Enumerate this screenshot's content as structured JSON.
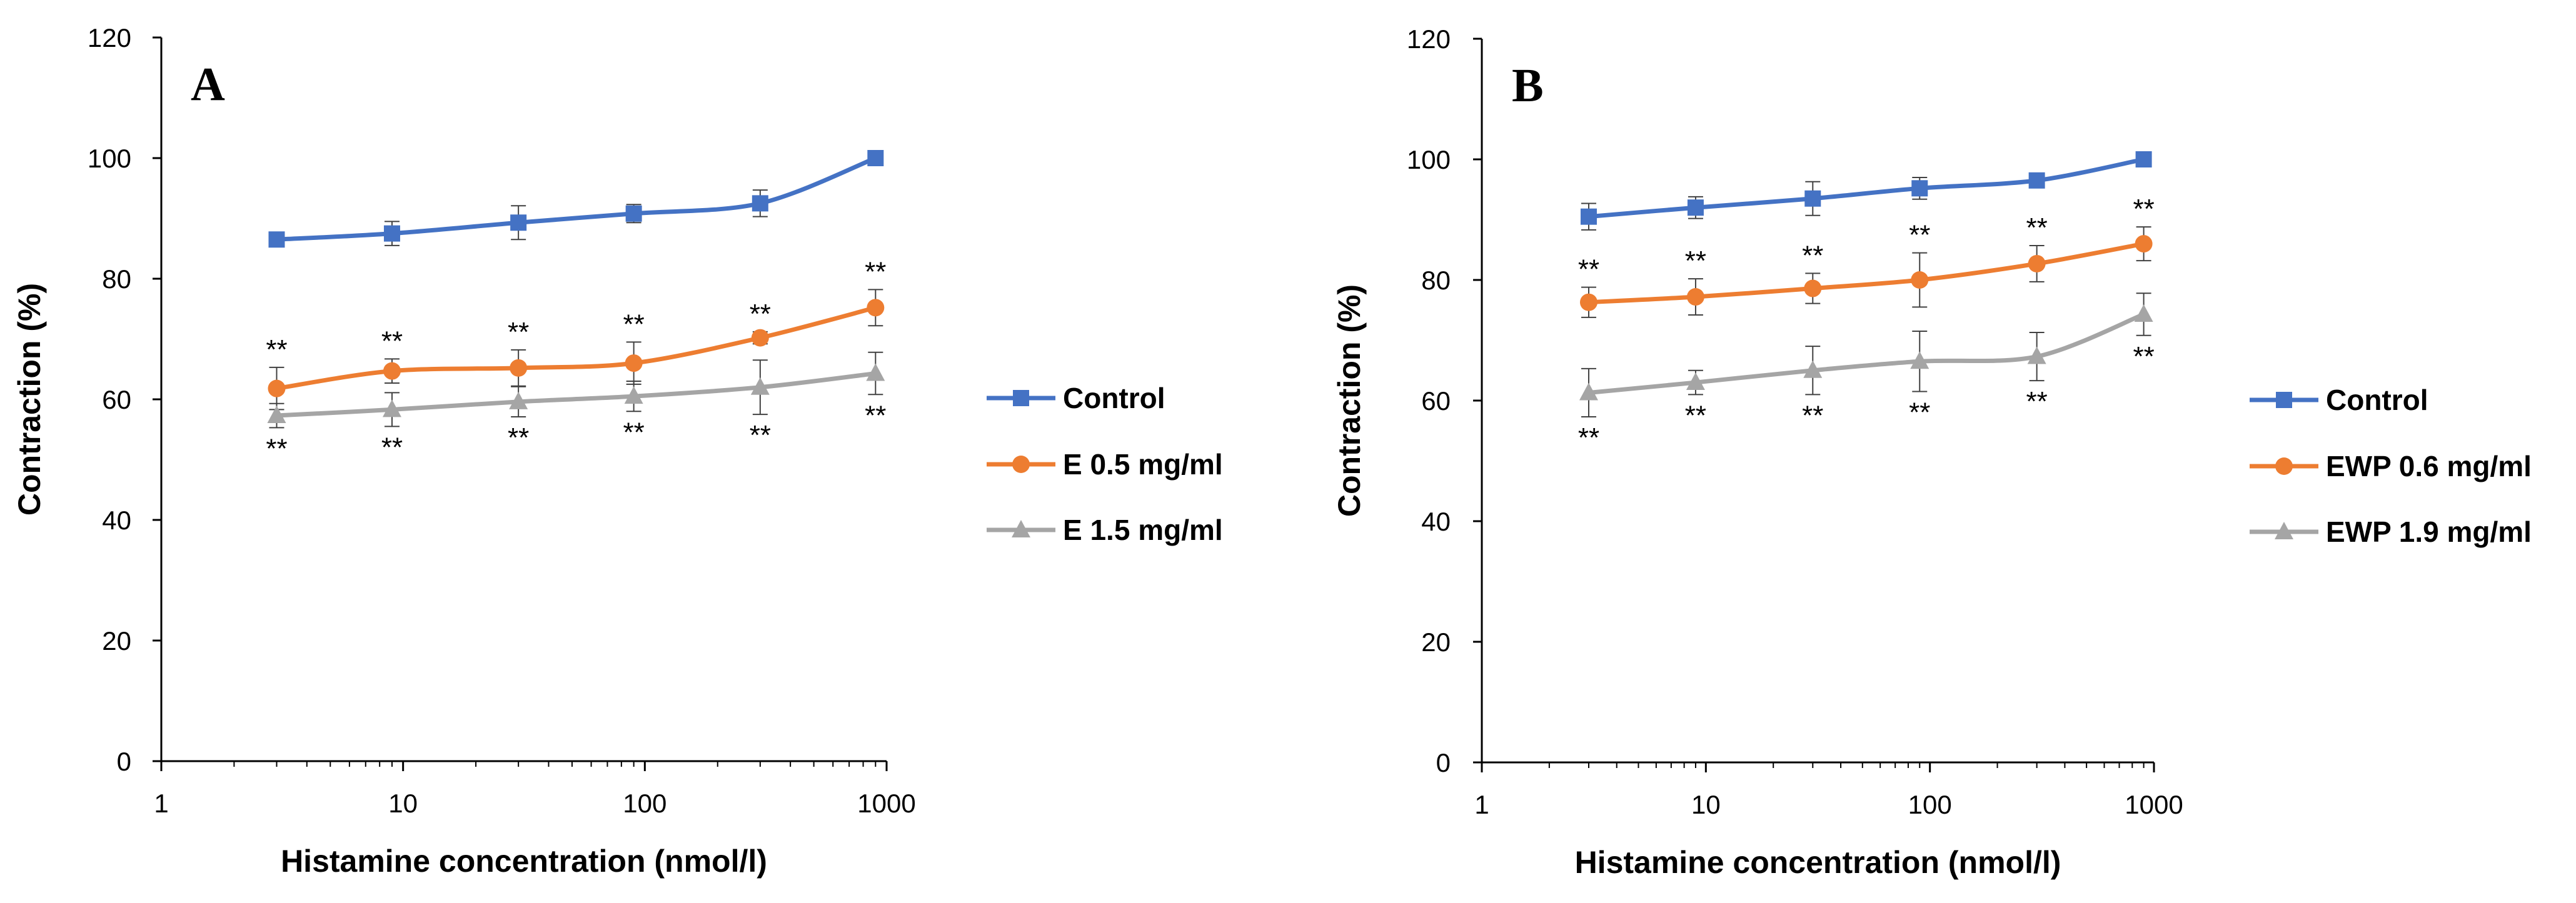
{
  "colors": {
    "control": "#4472C4",
    "dose_low": "#ED7D31",
    "dose_high": "#A5A5A5",
    "axis": "#000000",
    "errorbar": "#404040"
  },
  "chart_data": [
    {
      "type": "line",
      "panel_label": "A",
      "xlabel": "Histamine concentration (nmol/l)",
      "ylabel": "Contraction (%)",
      "xscale": "log",
      "xlim": [
        1,
        1000
      ],
      "ylim": [
        0,
        120
      ],
      "x_ticks": [
        "1",
        "10",
        "100",
        "1000"
      ],
      "y_ticks": [
        "0",
        "20",
        "40",
        "60",
        "80",
        "100",
        "120"
      ],
      "legend_position": "right",
      "x": [
        3,
        9,
        30,
        90,
        300,
        900
      ],
      "series": [
        {
          "name": "Control",
          "marker": "square",
          "color_key": "control",
          "values": [
            86.5,
            87.5,
            89.3,
            90.8,
            92.5,
            100
          ],
          "errors": [
            1.2,
            2.0,
            2.8,
            1.5,
            2.2,
            0
          ],
          "significance": [],
          "sig_position": "above"
        },
        {
          "name": "E 0.5 mg/ml",
          "marker": "circle",
          "color_key": "dose_low",
          "values": [
            61.8,
            64.7,
            65.2,
            66.0,
            70.2,
            75.2
          ],
          "errors": [
            3.5,
            2.0,
            3.0,
            3.5,
            1.0,
            3.0
          ],
          "significance": [
            "**",
            "**",
            "**",
            "**",
            "**",
            "**"
          ],
          "sig_position": "above"
        },
        {
          "name": "E 1.5 mg/ml",
          "marker": "triangle",
          "color_key": "dose_high",
          "values": [
            57.3,
            58.3,
            59.6,
            60.5,
            62.0,
            64.3
          ],
          "errors": [
            2.0,
            2.8,
            2.5,
            2.5,
            4.5,
            3.5
          ],
          "significance": [
            "**",
            "**",
            "**",
            "**",
            "**",
            "**"
          ],
          "sig_position": "below"
        }
      ]
    },
    {
      "type": "line",
      "panel_label": "B",
      "xlabel": "Histamine concentration (nmol/l)",
      "ylabel": "Contraction (%)",
      "xscale": "log",
      "xlim": [
        1,
        1000
      ],
      "ylim": [
        0,
        120
      ],
      "x_ticks": [
        "1",
        "10",
        "100",
        "1000"
      ],
      "y_ticks": [
        "0",
        "20",
        "40",
        "60",
        "80",
        "100",
        "120"
      ],
      "legend_position": "right",
      "x": [
        3,
        9,
        30,
        90,
        300,
        900
      ],
      "series": [
        {
          "name": "Control",
          "marker": "square",
          "color_key": "control",
          "values": [
            90.5,
            92.0,
            93.5,
            95.2,
            96.5,
            100
          ],
          "errors": [
            2.2,
            1.8,
            2.8,
            1.8,
            1.2,
            0
          ],
          "significance": [],
          "sig_position": "above"
        },
        {
          "name": "EWP 0.6 mg/ml",
          "marker": "circle",
          "color_key": "dose_low",
          "values": [
            76.3,
            77.2,
            78.6,
            80.0,
            82.7,
            86.0
          ],
          "errors": [
            2.5,
            3.0,
            2.5,
            4.5,
            3.0,
            2.8
          ],
          "significance": [
            "**",
            "**",
            "**",
            "**",
            "**",
            "**"
          ],
          "sig_position": "above"
        },
        {
          "name": "EWP 1.9 mg/ml",
          "marker": "triangle",
          "color_key": "dose_high",
          "values": [
            61.3,
            63.0,
            65.0,
            66.5,
            67.3,
            74.3
          ],
          "errors": [
            4.0,
            2.0,
            4.0,
            5.0,
            4.0,
            3.5
          ],
          "significance": [
            "**",
            "**",
            "**",
            "**",
            "**",
            "**"
          ],
          "sig_position": "below"
        }
      ]
    }
  ]
}
